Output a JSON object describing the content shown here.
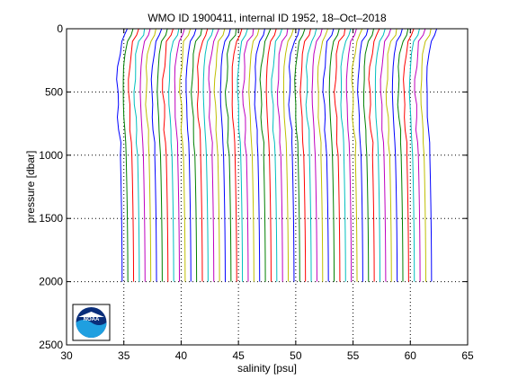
{
  "chart_data": {
    "type": "line",
    "title": "WMO ID 1900411, internal ID 1952, 18–Oct–2018",
    "xlabel": "salinity [psu]",
    "ylabel": "pressure [dbar]",
    "xlim": [
      30,
      65
    ],
    "ylim": [
      2500,
      0
    ],
    "y_reversed": true,
    "xticks": [
      30,
      35,
      40,
      45,
      50,
      55,
      60,
      65
    ],
    "yticks": [
      0,
      500,
      1000,
      1500,
      2000,
      2500
    ],
    "grid": "dotted",
    "profile_offset_psu": 0.5,
    "profile_count": 55,
    "first_profile_deep_salinity": 34.85,
    "profile_shape": {
      "pressure": [
        0,
        50,
        100,
        200,
        300,
        400,
        500,
        600,
        700,
        800,
        900,
        1000,
        1200,
        1400,
        1600,
        1800,
        2000
      ],
      "salinity_anomaly": [
        0.45,
        0.3,
        -0.05,
        -0.25,
        -0.35,
        -0.4,
        -0.42,
        -0.38,
        -0.33,
        -0.27,
        -0.2,
        -0.15,
        -0.1,
        -0.06,
        -0.03,
        -0.01,
        0.0
      ]
    },
    "colors": [
      "#0000ff",
      "#008000",
      "#ff0000",
      "#00bfbf",
      "#bf00bf",
      "#bfbf00"
    ],
    "logo": "NOAA"
  }
}
